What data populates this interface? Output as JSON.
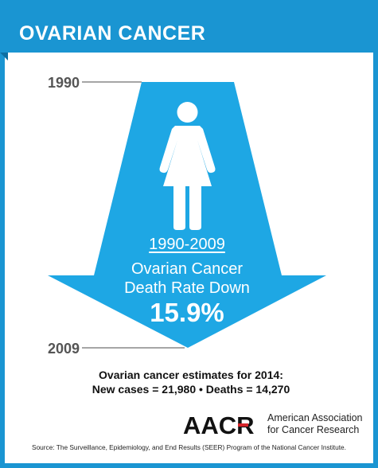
{
  "header": {
    "title": "OVARIAN CANCER"
  },
  "timeline": {
    "start_year": "1990",
    "end_year": "2009"
  },
  "stat": {
    "range": "1990-2009",
    "line1": "Ovarian Cancer",
    "line2": "Death Rate Down",
    "value": "15.9%"
  },
  "estimates": {
    "title": "Ovarian cancer estimates for 2014:",
    "values": "New cases = 21,980 • Deaths = 14,270"
  },
  "logo": {
    "wordmark": "AACR",
    "line1": "American Association",
    "line2": "for Cancer Research"
  },
  "source": "Source: The Surveillance, Epidemiology, and End Results (SEER) Program of the National Cancer Institute.",
  "colors": {
    "brand_blue": "#1a95d2",
    "arrow_blue": "#1ea7e4",
    "logo_red": "#d6252b"
  },
  "icons": [
    "woman-icon",
    "down-arrow-icon"
  ]
}
